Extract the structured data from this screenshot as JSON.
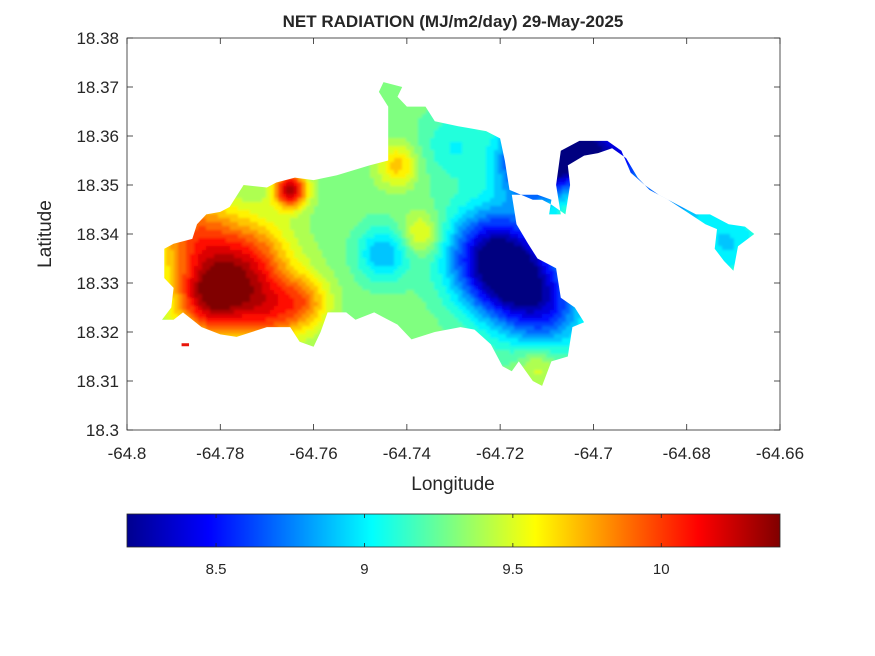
{
  "chart_data": {
    "type": "heatmap",
    "title": "NET RADIATION (MJ/m2/day) 29-May-2025",
    "xlabel": "Longitude",
    "ylabel": "Latitude",
    "xlim": [
      -64.8,
      -64.66
    ],
    "ylim": [
      18.3,
      18.38
    ],
    "x_ticks": [
      -64.8,
      -64.78,
      -64.76,
      -64.74,
      -64.72,
      -64.7,
      -64.68,
      -64.66
    ],
    "x_tick_labels": [
      "-64.8",
      "-64.78",
      "-64.76",
      "-64.74",
      "-64.72",
      "-64.7",
      "-64.68",
      "-64.66"
    ],
    "y_ticks": [
      18.3,
      18.31,
      18.32,
      18.33,
      18.34,
      18.35,
      18.36,
      18.37,
      18.38
    ],
    "y_tick_labels": [
      "18.3",
      "18.31",
      "18.32",
      "18.33",
      "18.34",
      "18.35",
      "18.36",
      "18.37",
      "18.38"
    ],
    "grid": false,
    "colormap": "jet",
    "colorbar": {
      "orientation": "horizontal",
      "location": "below",
      "clim": [
        8.2,
        10.4
      ],
      "ticks": [
        8.5,
        9,
        9.5,
        10
      ],
      "tick_labels": [
        "8.5",
        "9",
        "9.5",
        "10"
      ]
    },
    "land_outline": [
      [
        -64.7925,
        18.3225
      ],
      [
        -64.79,
        18.3225
      ],
      [
        -64.788,
        18.324
      ],
      [
        -64.784,
        18.321
      ],
      [
        -64.78,
        18.3195
      ],
      [
        -64.7765,
        18.319
      ],
      [
        -64.77,
        18.321
      ],
      [
        -64.765,
        18.321
      ],
      [
        -64.763,
        18.318
      ],
      [
        -64.76,
        18.317
      ],
      [
        -64.7585,
        18.32
      ],
      [
        -64.757,
        18.324
      ],
      [
        -64.753,
        18.324
      ],
      [
        -64.751,
        18.3225
      ],
      [
        -64.747,
        18.324
      ],
      [
        -64.742,
        18.3215
      ],
      [
        -64.739,
        18.3185
      ],
      [
        -64.734,
        18.32
      ],
      [
        -64.7285,
        18.321
      ],
      [
        -64.7255,
        18.3205
      ],
      [
        -64.722,
        18.3175
      ],
      [
        -64.7195,
        18.313
      ],
      [
        -64.7175,
        18.312
      ],
      [
        -64.716,
        18.314
      ],
      [
        -64.713,
        18.31
      ],
      [
        -64.711,
        18.309
      ],
      [
        -64.709,
        18.314
      ],
      [
        -64.7055,
        18.315
      ],
      [
        -64.7045,
        18.321
      ],
      [
        -64.702,
        18.322
      ],
      [
        -64.704,
        18.325
      ],
      [
        -64.707,
        18.327
      ],
      [
        -64.708,
        18.333
      ],
      [
        -64.712,
        18.335
      ],
      [
        -64.714,
        18.338
      ],
      [
        -64.7165,
        18.342
      ],
      [
        -64.7175,
        18.348
      ],
      [
        -64.712,
        18.348
      ],
      [
        -64.709,
        18.347
      ],
      [
        -64.7095,
        18.344
      ],
      [
        -64.707,
        18.344
      ],
      [
        -64.708,
        18.35
      ],
      [
        -64.707,
        18.357
      ],
      [
        -64.703,
        18.359
      ],
      [
        -64.697,
        18.359
      ],
      [
        -64.694,
        18.357
      ],
      [
        -64.692,
        18.3525
      ],
      [
        -64.689,
        18.35
      ],
      [
        -64.686,
        18.348
      ],
      [
        -64.682,
        18.346
      ],
      [
        -64.678,
        18.344
      ],
      [
        -64.675,
        18.344
      ],
      [
        -64.671,
        18.342
      ],
      [
        -64.6675,
        18.3415
      ],
      [
        -64.6655,
        18.34
      ],
      [
        -64.669,
        18.3375
      ],
      [
        -64.67,
        18.3325
      ],
      [
        -64.672,
        18.3345
      ],
      [
        -64.674,
        18.337
      ],
      [
        -64.6735,
        18.341
      ],
      [
        -64.676,
        18.342
      ],
      [
        -64.68,
        18.3445
      ],
      [
        -64.684,
        18.347
      ],
      [
        -64.688,
        18.349
      ],
      [
        -64.6905,
        18.3515
      ],
      [
        -64.693,
        18.3555
      ],
      [
        -64.696,
        18.3575
      ],
      [
        -64.699,
        18.3565
      ],
      [
        -64.702,
        18.356
      ],
      [
        -64.7055,
        18.354
      ],
      [
        -64.705,
        18.35
      ],
      [
        -64.706,
        18.344
      ],
      [
        -64.709,
        18.346
      ],
      [
        -64.711,
        18.347
      ],
      [
        -64.713,
        18.347
      ],
      [
        -64.718,
        18.349
      ],
      [
        -64.719,
        18.355
      ],
      [
        -64.72,
        18.3595
      ],
      [
        -64.723,
        18.361
      ],
      [
        -64.729,
        18.362
      ],
      [
        -64.734,
        18.363
      ],
      [
        -64.736,
        18.366
      ],
      [
        -64.74,
        18.366
      ],
      [
        -64.742,
        18.368
      ],
      [
        -64.741,
        18.37
      ],
      [
        -64.745,
        18.371
      ],
      [
        -64.746,
        18.369
      ],
      [
        -64.744,
        18.366
      ],
      [
        -64.744,
        18.355
      ],
      [
        -64.748,
        18.354
      ],
      [
        -64.755,
        18.352
      ],
      [
        -64.76,
        18.351
      ],
      [
        -64.764,
        18.3515
      ],
      [
        -64.768,
        18.3505
      ],
      [
        -64.77,
        18.3495
      ],
      [
        -64.775,
        18.35
      ],
      [
        -64.778,
        18.3455
      ],
      [
        -64.78,
        18.3445
      ],
      [
        -64.783,
        18.344
      ],
      [
        -64.785,
        18.342
      ],
      [
        -64.786,
        18.339
      ],
      [
        -64.79,
        18.338
      ],
      [
        -64.792,
        18.337
      ],
      [
        -64.792,
        18.331
      ],
      [
        -64.79,
        18.329
      ],
      [
        -64.7905,
        18.325
      ],
      [
        -64.7925,
        18.3225
      ]
    ],
    "islet": [
      [
        -64.7883,
        18.3174
      ],
      [
        -64.7867,
        18.3174
      ]
    ],
    "field": {
      "base": 9.3,
      "sources": [
        {
          "x": -64.765,
          "y": 18.349,
          "amp": 1.05,
          "r": 0.0025
        },
        {
          "x": -64.782,
          "y": 18.327,
          "amp": 0.95,
          "r": 0.0055
        },
        {
          "x": -64.786,
          "y": 18.34,
          "amp": 0.55,
          "r": 0.006
        },
        {
          "x": -64.774,
          "y": 18.334,
          "amp": 0.7,
          "r": 0.0065
        },
        {
          "x": -64.77,
          "y": 18.324,
          "amp": 0.55,
          "r": 0.005
        },
        {
          "x": -64.762,
          "y": 18.326,
          "amp": 0.45,
          "r": 0.004
        },
        {
          "x": -64.742,
          "y": 18.354,
          "amp": 0.4,
          "r": 0.003
        },
        {
          "x": -64.737,
          "y": 18.34,
          "amp": 0.35,
          "r": 0.003
        },
        {
          "x": -64.712,
          "y": 18.313,
          "amp": 0.25,
          "r": 0.003
        },
        {
          "x": -64.745,
          "y": 18.336,
          "amp": -0.45,
          "r": 0.004
        },
        {
          "x": -64.73,
          "y": 18.358,
          "amp": -0.25,
          "r": 0.005
        },
        {
          "x": -64.722,
          "y": 18.336,
          "amp": -0.85,
          "r": 0.007
        },
        {
          "x": -64.716,
          "y": 18.33,
          "amp": -0.8,
          "r": 0.007
        },
        {
          "x": -64.712,
          "y": 18.355,
          "amp": -1.2,
          "r": 0.0055
        },
        {
          "x": -64.704,
          "y": 18.358,
          "amp": -0.9,
          "r": 0.005
        },
        {
          "x": -64.695,
          "y": 18.356,
          "amp": -0.7,
          "r": 0.005
        },
        {
          "x": -64.685,
          "y": 18.347,
          "amp": -0.55,
          "r": 0.006
        },
        {
          "x": -64.671,
          "y": 18.338,
          "amp": -0.35,
          "r": 0.006
        },
        {
          "x": -64.709,
          "y": 18.324,
          "amp": -0.45,
          "r": 0.006
        }
      ]
    }
  }
}
